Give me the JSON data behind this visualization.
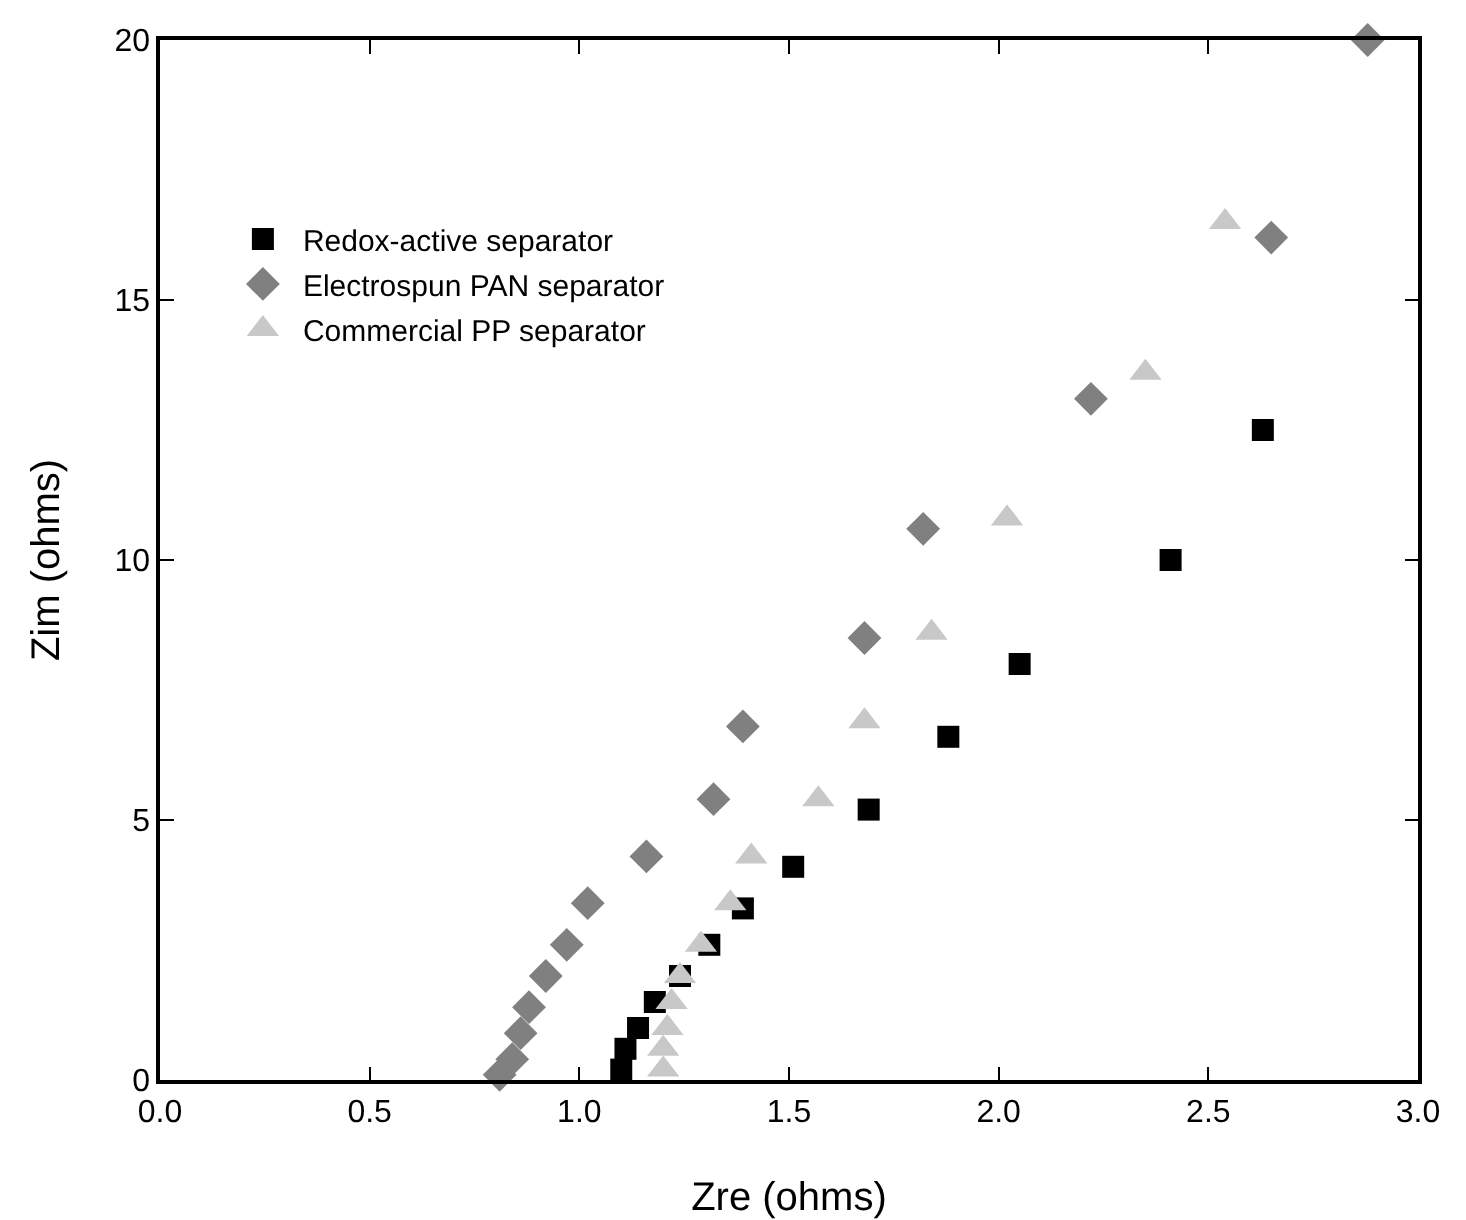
{
  "chart_data": {
    "type": "scatter",
    "xlabel": "Zre (ohms)",
    "ylabel": "Zim (ohms)",
    "xlim": [
      0,
      3
    ],
    "ylim": [
      0,
      20
    ],
    "xticks": [
      {
        "value": 0,
        "label": "0.0"
      },
      0.5,
      {
        "value": 1,
        "label": "1.0"
      },
      1.5,
      {
        "value": 2,
        "label": "2.0"
      },
      2.5,
      {
        "value": 3,
        "label": "3.0"
      }
    ],
    "yticks": [
      0,
      5,
      10,
      15,
      20
    ],
    "grid": false,
    "legend": "top left",
    "series": [
      {
        "name": "Redox-active separator",
        "color": "#000000",
        "marker": "square",
        "x": [
          1.1,
          1.11,
          1.14,
          1.18,
          1.24,
          1.31,
          1.39,
          1.51,
          1.69,
          1.88,
          2.05,
          2.41,
          2.63
        ],
        "values": [
          0.2,
          0.6,
          1.0,
          1.5,
          2.0,
          2.6,
          3.3,
          4.1,
          5.2,
          6.6,
          8.0,
          10.0,
          12.5
        ]
      },
      {
        "name": "Electrospun PAN separator",
        "color": "#808080",
        "marker": "diamond",
        "x": [
          0.81,
          0.84,
          0.86,
          0.88,
          0.92,
          0.97,
          1.02,
          1.16,
          1.32,
          1.39,
          1.68,
          1.82,
          2.22,
          2.65,
          2.88
        ],
        "values": [
          0.1,
          0.4,
          0.9,
          1.4,
          2.0,
          2.6,
          3.4,
          4.3,
          5.4,
          6.8,
          8.5,
          10.6,
          13.1,
          16.2,
          20
        ]
      },
      {
        "name": "Commercial PP separator",
        "color": "#c8c8c8",
        "marker": "triangle",
        "x": [
          1.2,
          1.2,
          1.21,
          1.22,
          1.24,
          1.29,
          1.36,
          1.41,
          1.57,
          1.68,
          1.84,
          2.02,
          2.35,
          2.54
        ],
        "values": [
          0.2,
          0.6,
          1.0,
          1.5,
          2.0,
          2.6,
          3.4,
          4.3,
          5.4,
          6.9,
          8.6,
          10.8,
          13.6,
          16.5
        ]
      }
    ]
  }
}
